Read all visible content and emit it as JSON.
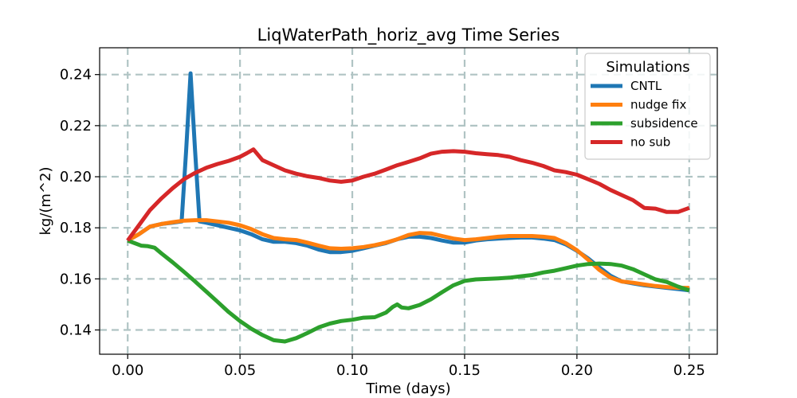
{
  "chart_data": {
    "type": "line",
    "title": "LiqWaterPath_horiz_avg Time Series",
    "xlabel": "Time (days)",
    "ylabel": "kg/(m^2)",
    "xlim": [
      -0.0125,
      0.2625
    ],
    "ylim": [
      0.1305,
      0.2505
    ],
    "xticks": [
      0.0,
      0.05,
      0.1,
      0.15,
      0.2,
      0.25
    ],
    "xtick_labels": [
      "0.00",
      "0.05",
      "0.10",
      "0.15",
      "0.20",
      "0.25"
    ],
    "yticks": [
      0.14,
      0.16,
      0.18,
      0.2,
      0.22,
      0.24
    ],
    "ytick_labels": [
      "0.14",
      "0.16",
      "0.18",
      "0.20",
      "0.22",
      "0.24"
    ],
    "grid": true,
    "legend": {
      "title": "Simulations",
      "placement": "top-right"
    },
    "series": [
      {
        "name": "CNTL",
        "color": "#1f77b4",
        "x": [
          0.0,
          0.005,
          0.01,
          0.015,
          0.02,
          0.024,
          0.026,
          0.028,
          0.03,
          0.032,
          0.035,
          0.04,
          0.045,
          0.05,
          0.055,
          0.06,
          0.065,
          0.07,
          0.075,
          0.08,
          0.085,
          0.09,
          0.095,
          0.1,
          0.105,
          0.11,
          0.115,
          0.12,
          0.125,
          0.13,
          0.135,
          0.14,
          0.145,
          0.15,
          0.155,
          0.16,
          0.165,
          0.17,
          0.175,
          0.18,
          0.185,
          0.19,
          0.195,
          0.2,
          0.205,
          0.21,
          0.215,
          0.22,
          0.225,
          0.23,
          0.235,
          0.24,
          0.245,
          0.25
        ],
        "values": [
          0.175,
          0.1775,
          0.1805,
          0.1815,
          0.182,
          0.1825,
          0.21,
          0.2405,
          0.21,
          0.1825,
          0.182,
          0.181,
          0.18,
          0.179,
          0.1775,
          0.1755,
          0.1745,
          0.1745,
          0.174,
          0.173,
          0.1715,
          0.1705,
          0.1705,
          0.171,
          0.172,
          0.173,
          0.174,
          0.1755,
          0.1765,
          0.1765,
          0.176,
          0.175,
          0.1742,
          0.1742,
          0.175,
          0.1755,
          0.1758,
          0.176,
          0.1762,
          0.1762,
          0.1758,
          0.1752,
          0.1735,
          0.171,
          0.168,
          0.1645,
          0.1612,
          0.159,
          0.1582,
          0.1575,
          0.157,
          0.1565,
          0.156,
          0.1555
        ]
      },
      {
        "name": "nudge fix",
        "color": "#ff7f0e",
        "x": [
          0.0,
          0.005,
          0.01,
          0.015,
          0.02,
          0.025,
          0.03,
          0.035,
          0.04,
          0.045,
          0.05,
          0.055,
          0.06,
          0.065,
          0.07,
          0.075,
          0.08,
          0.085,
          0.09,
          0.095,
          0.1,
          0.105,
          0.11,
          0.115,
          0.12,
          0.125,
          0.13,
          0.135,
          0.14,
          0.145,
          0.15,
          0.155,
          0.16,
          0.165,
          0.17,
          0.175,
          0.18,
          0.185,
          0.19,
          0.195,
          0.2,
          0.205,
          0.21,
          0.215,
          0.22,
          0.225,
          0.23,
          0.235,
          0.24,
          0.245,
          0.25
        ],
        "values": [
          0.175,
          0.1775,
          0.1805,
          0.1815,
          0.1822,
          0.1828,
          0.183,
          0.183,
          0.1825,
          0.182,
          0.181,
          0.1795,
          0.1775,
          0.176,
          0.1755,
          0.1752,
          0.1742,
          0.173,
          0.172,
          0.1718,
          0.172,
          0.1725,
          0.1732,
          0.1742,
          0.1755,
          0.1772,
          0.178,
          0.1778,
          0.1768,
          0.1758,
          0.1752,
          0.1755,
          0.176,
          0.1765,
          0.1768,
          0.1768,
          0.1768,
          0.1765,
          0.176,
          0.174,
          0.1712,
          0.1675,
          0.1635,
          0.1605,
          0.159,
          0.1585,
          0.1578,
          0.1572,
          0.1568,
          0.1565,
          0.1565
        ]
      },
      {
        "name": "subsidence",
        "color": "#2ca02c",
        "x": [
          0.0,
          0.003,
          0.006,
          0.009,
          0.012,
          0.015,
          0.02,
          0.025,
          0.03,
          0.035,
          0.04,
          0.045,
          0.05,
          0.055,
          0.06,
          0.065,
          0.07,
          0.075,
          0.08,
          0.085,
          0.09,
          0.095,
          0.1,
          0.105,
          0.11,
          0.115,
          0.118,
          0.12,
          0.122,
          0.125,
          0.13,
          0.135,
          0.14,
          0.145,
          0.15,
          0.155,
          0.16,
          0.165,
          0.17,
          0.175,
          0.18,
          0.185,
          0.19,
          0.195,
          0.2,
          0.205,
          0.21,
          0.215,
          0.22,
          0.225,
          0.23,
          0.235,
          0.24,
          0.245,
          0.25
        ],
        "values": [
          0.175,
          0.174,
          0.173,
          0.1728,
          0.1722,
          0.17,
          0.1665,
          0.1628,
          0.159,
          0.155,
          0.151,
          0.147,
          0.1435,
          0.1405,
          0.138,
          0.136,
          0.1355,
          0.1368,
          0.1388,
          0.141,
          0.1425,
          0.1435,
          0.144,
          0.1448,
          0.145,
          0.1468,
          0.149,
          0.15,
          0.1488,
          0.1485,
          0.1498,
          0.152,
          0.1548,
          0.1575,
          0.1592,
          0.1598,
          0.16,
          0.1602,
          0.1605,
          0.161,
          0.1615,
          0.1625,
          0.1632,
          0.1642,
          0.1652,
          0.1658,
          0.166,
          0.1658,
          0.1652,
          0.1638,
          0.1618,
          0.1598,
          0.1588,
          0.157,
          0.1555
        ]
      },
      {
        "name": "no sub",
        "color": "#d62728",
        "x": [
          0.0,
          0.005,
          0.01,
          0.015,
          0.02,
          0.025,
          0.03,
          0.035,
          0.04,
          0.045,
          0.05,
          0.053,
          0.056,
          0.06,
          0.065,
          0.07,
          0.075,
          0.08,
          0.085,
          0.09,
          0.095,
          0.1,
          0.105,
          0.11,
          0.115,
          0.12,
          0.125,
          0.13,
          0.135,
          0.14,
          0.145,
          0.15,
          0.155,
          0.16,
          0.165,
          0.17,
          0.175,
          0.18,
          0.185,
          0.19,
          0.195,
          0.2,
          0.205,
          0.21,
          0.215,
          0.22,
          0.225,
          0.23,
          0.235,
          0.24,
          0.245,
          0.25
        ],
        "values": [
          0.175,
          0.181,
          0.187,
          0.1915,
          0.1955,
          0.199,
          0.2015,
          0.2035,
          0.205,
          0.2062,
          0.2078,
          0.2092,
          0.2107,
          0.2065,
          0.2045,
          0.2025,
          0.2012,
          0.2002,
          0.1995,
          0.1985,
          0.198,
          0.1985,
          0.2,
          0.2012,
          0.2028,
          0.2045,
          0.2058,
          0.2072,
          0.209,
          0.2098,
          0.21,
          0.2098,
          0.2092,
          0.2088,
          0.2085,
          0.2078,
          0.2065,
          0.2055,
          0.2042,
          0.2025,
          0.2018,
          0.2008,
          0.199,
          0.1972,
          0.1948,
          0.1928,
          0.1908,
          0.1878,
          0.1875,
          0.1862,
          0.1862,
          0.1878
        ]
      }
    ]
  }
}
